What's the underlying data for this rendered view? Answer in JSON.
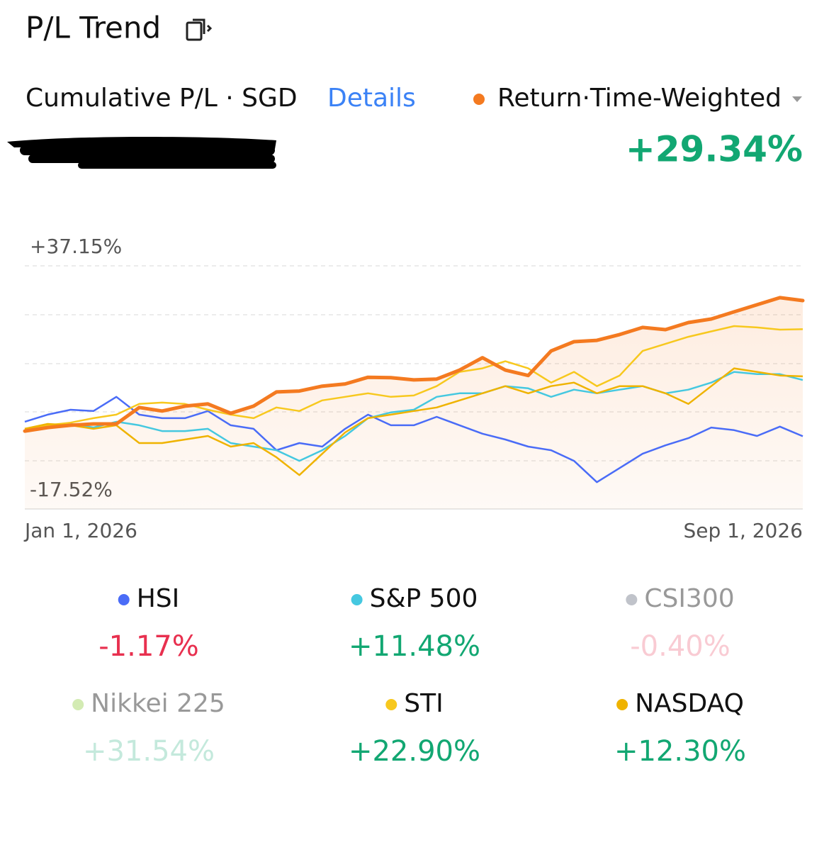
{
  "header": {
    "title": "P/L Trend",
    "subtitle": "Cumulative P/L · SGD",
    "details_link": "Details",
    "return_mode": "Return·Time-Weighted"
  },
  "chart_data": {
    "type": "line",
    "categories": [
      "Jan 1, 2026",
      null,
      null,
      null,
      null,
      null,
      null,
      null,
      null,
      null,
      null,
      null,
      null,
      null,
      null,
      null,
      null,
      null,
      null,
      null,
      null,
      null,
      null,
      null,
      null,
      null,
      null,
      null,
      null,
      null,
      null,
      null,
      null,
      null,
      "Sep 1, 2026"
    ],
    "ylim": [
      -17.52,
      37.15
    ],
    "yticks": [
      {
        "value": 37.15,
        "label": "+37.15%"
      },
      {
        "value": -17.52,
        "label": "-17.52%"
      }
    ],
    "portfolio": {
      "name": "Return·Time-Weighted",
      "color": "#f47a20",
      "total": 29.34,
      "total_label": "+29.34%",
      "values": [
        0.0,
        0.8,
        1.3,
        1.6,
        1.6,
        5.3,
        4.5,
        5.6,
        6.1,
        4.0,
        5.6,
        8.8,
        9.0,
        10.1,
        10.6,
        12.1,
        12.0,
        11.5,
        11.7,
        13.7,
        16.5,
        13.7,
        12.5,
        18.0,
        20.1,
        20.4,
        21.7,
        23.3,
        22.8,
        24.4,
        25.2,
        26.8,
        28.4,
        30.0,
        29.34
      ]
    },
    "series": [
      {
        "name": "HSI",
        "color": "#4a6cf7",
        "visible": true,
        "total": -1.17,
        "total_label": "-1.17%",
        "values": [
          2.1,
          3.7,
          4.8,
          4.5,
          7.7,
          3.7,
          2.9,
          2.9,
          4.5,
          1.3,
          0.5,
          -4.3,
          -2.7,
          -3.5,
          0.5,
          3.7,
          1.3,
          1.3,
          3.2,
          1.3,
          -0.6,
          -1.9,
          -3.5,
          -4.3,
          -6.7,
          -11.5,
          -8.3,
          -5.1,
          -3.2,
          -1.6,
          0.8,
          0.2,
          -1.1,
          1.0,
          -1.17
        ]
      },
      {
        "name": "S&P 500",
        "color": "#45c8e0",
        "visible": true,
        "total": 11.48,
        "total_label": "+11.48%",
        "values": [
          0.5,
          1.3,
          1.6,
          0.8,
          2.1,
          1.3,
          0.0,
          0.0,
          0.5,
          -2.7,
          -3.5,
          -4.3,
          -6.7,
          -4.3,
          -1.1,
          2.9,
          4.2,
          4.8,
          7.7,
          8.5,
          8.5,
          10.1,
          9.6,
          7.7,
          9.3,
          8.5,
          9.3,
          10.1,
          8.5,
          9.3,
          10.9,
          13.3,
          12.8,
          12.8,
          11.48
        ]
      },
      {
        "name": "CSI300",
        "color": "#b0b4bd",
        "visible": false,
        "total": -0.4,
        "total_label": "-0.40%"
      },
      {
        "name": "Nikkei 225",
        "color": "#c8e6a0",
        "visible": false,
        "total": 31.54,
        "total_label": "+31.54%"
      },
      {
        "name": "STI",
        "color": "#f7c81e",
        "visible": true,
        "total": 22.9,
        "total_label": "+22.90%",
        "values": [
          0.5,
          1.3,
          1.9,
          2.9,
          3.7,
          6.1,
          6.4,
          6.1,
          4.8,
          3.7,
          2.9,
          5.3,
          4.5,
          6.9,
          7.7,
          8.5,
          7.7,
          8.0,
          10.1,
          13.3,
          14.1,
          15.7,
          14.1,
          10.9,
          13.3,
          10.1,
          12.5,
          18.0,
          19.6,
          21.2,
          22.4,
          23.6,
          23.3,
          22.8,
          22.9
        ]
      },
      {
        "name": "NASDAQ",
        "color": "#efb300",
        "visible": true,
        "total": 12.3,
        "total_label": "+12.30%",
        "values": [
          0.5,
          1.6,
          1.3,
          0.5,
          1.3,
          -2.7,
          -2.7,
          -1.9,
          -1.1,
          -3.5,
          -2.7,
          -5.9,
          -9.9,
          -5.1,
          -0.3,
          2.9,
          3.7,
          4.5,
          5.3,
          6.9,
          8.5,
          10.1,
          8.5,
          10.1,
          10.9,
          8.5,
          10.1,
          10.1,
          8.5,
          6.1,
          10.1,
          14.1,
          13.3,
          12.5,
          12.3
        ]
      }
    ]
  }
}
